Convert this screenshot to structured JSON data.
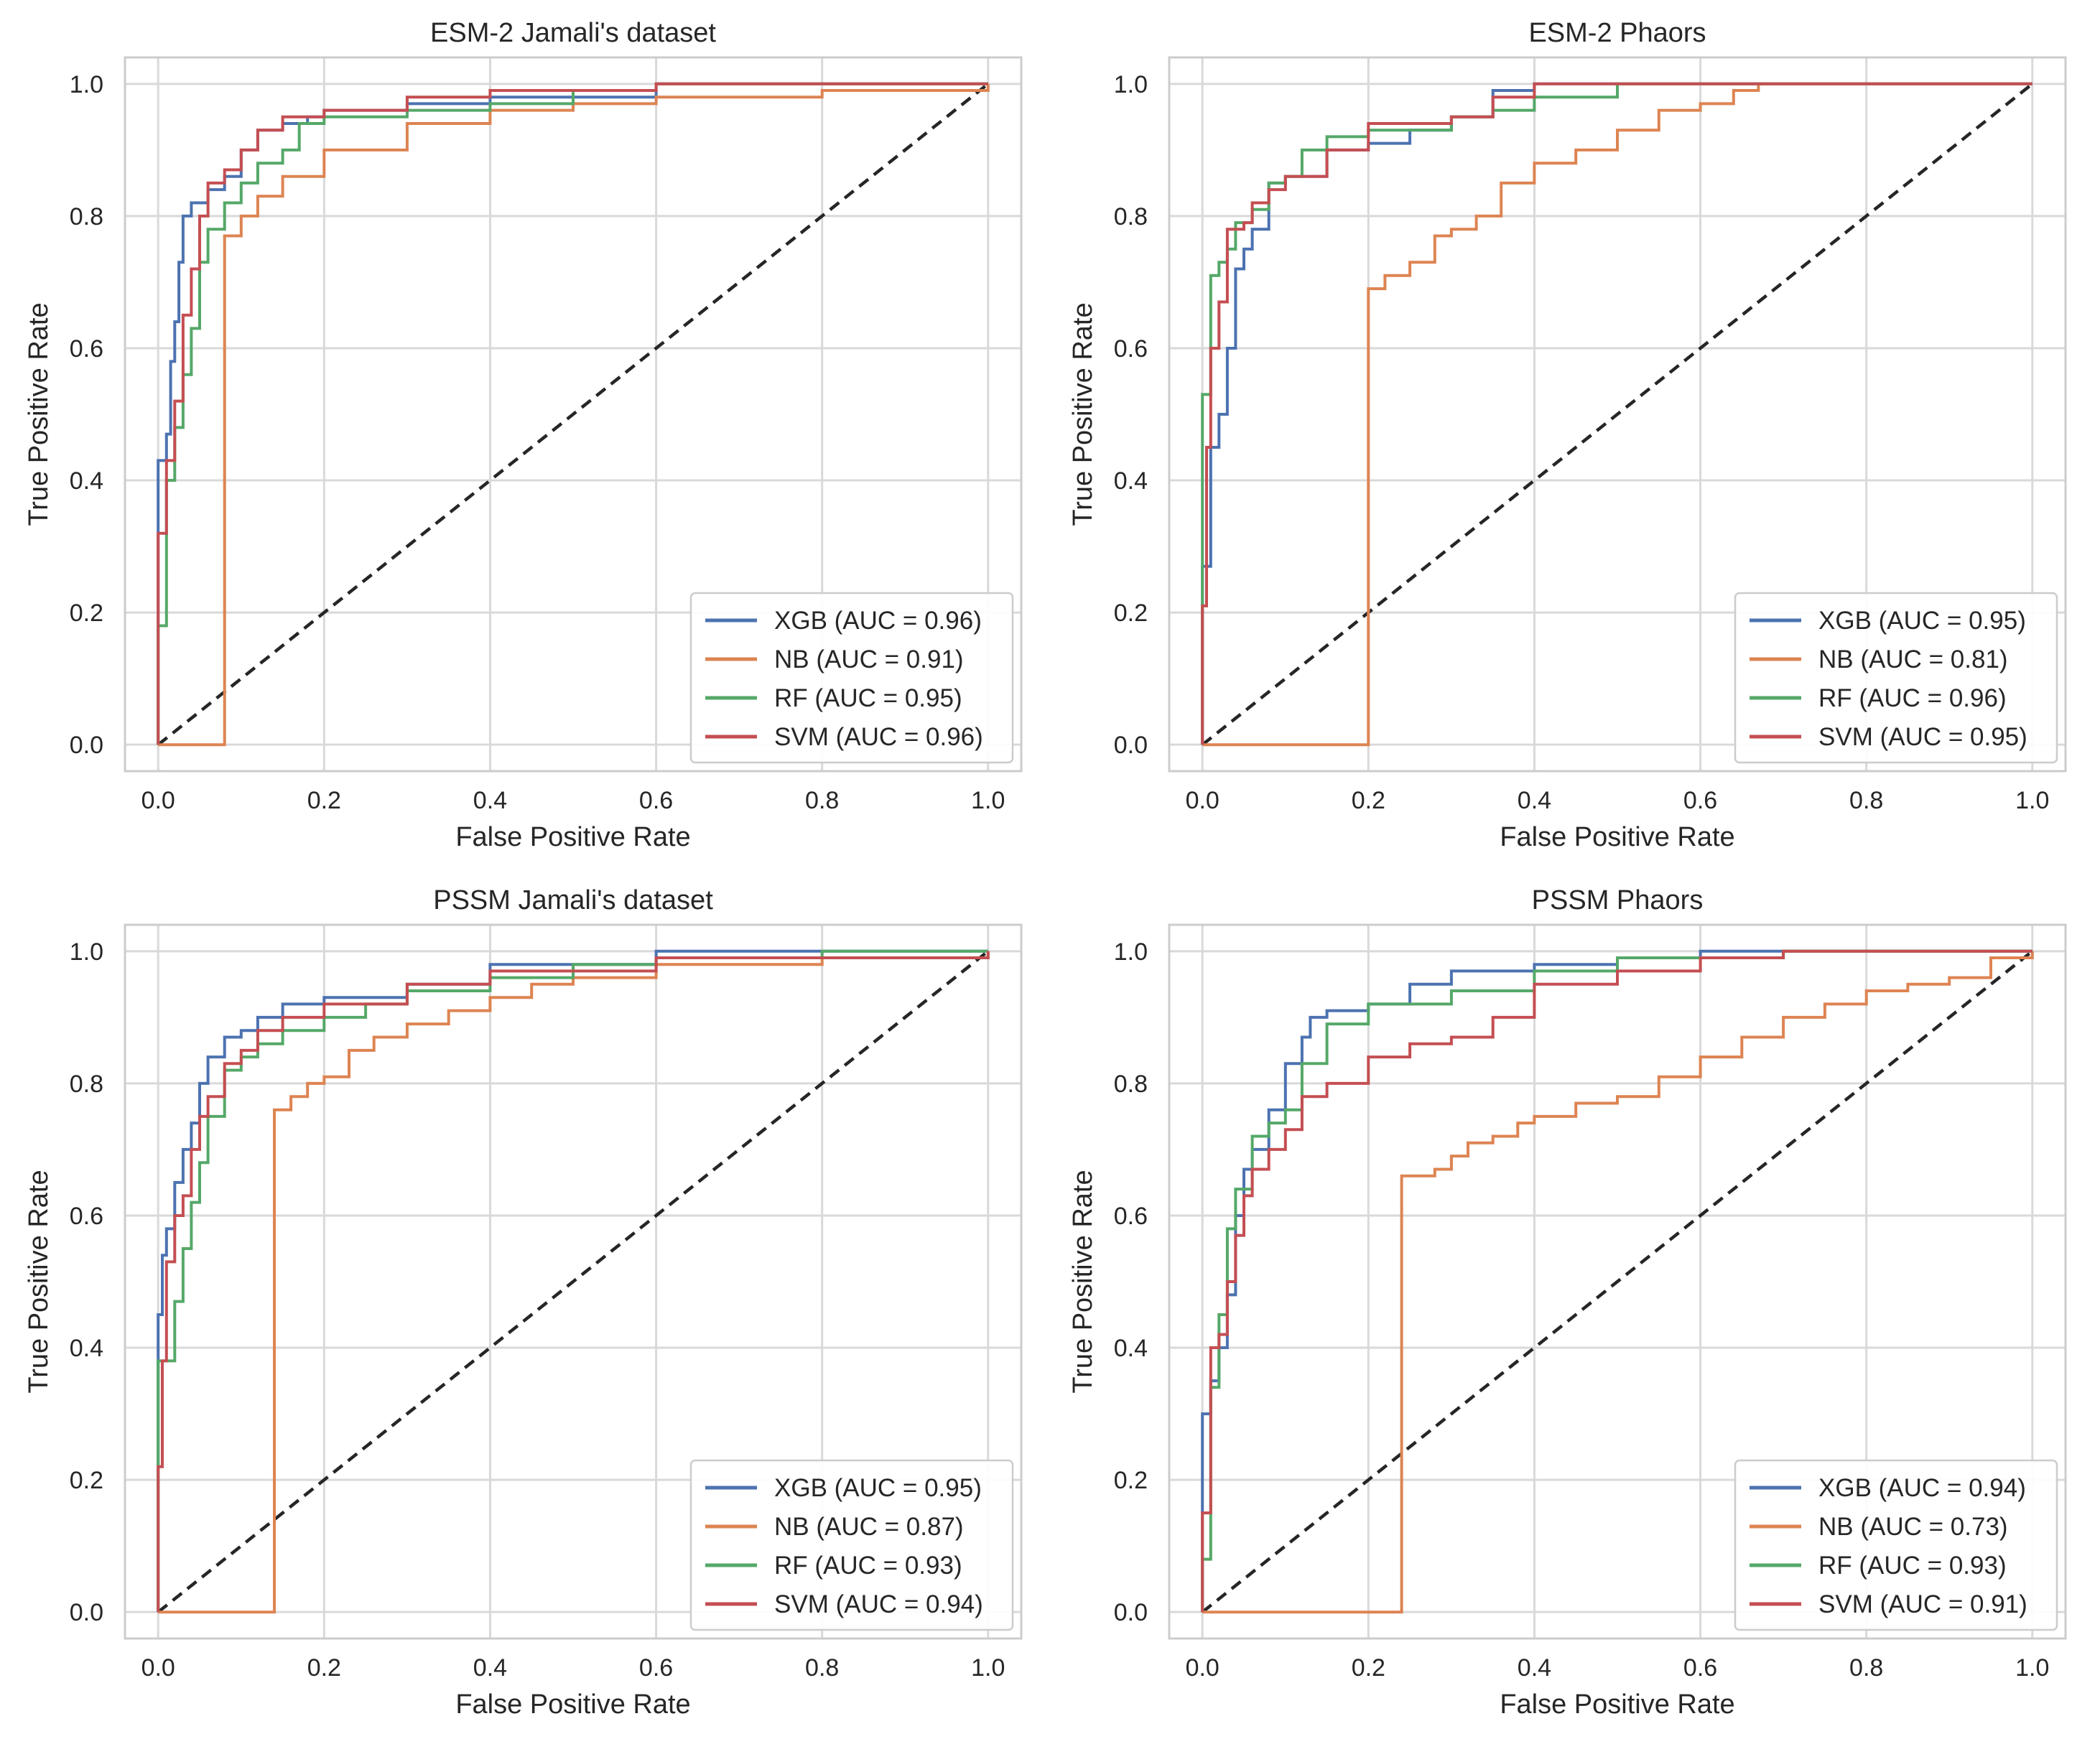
{
  "figure": {
    "background": "#ffffff",
    "grid_color": "#d9d9d9",
    "frame_color": "#cccccc",
    "diagonal_color": "#262626"
  },
  "series_colors": {
    "XGB": "#4c72b0",
    "NB": "#dd8452",
    "RF": "#55a868",
    "SVM": "#c44e52"
  },
  "chart_data": [
    {
      "type": "line",
      "title": "ESM-2 Jamali's dataset",
      "xlabel": "False Positive Rate",
      "ylabel": "True Positive Rate",
      "xlim": [
        0.0,
        1.0
      ],
      "ylim": [
        0.0,
        1.0
      ],
      "xticks": [
        "0.0",
        "0.2",
        "0.4",
        "0.6",
        "0.8",
        "1.0"
      ],
      "yticks": [
        "0.0",
        "0.2",
        "0.4",
        "0.6",
        "0.8",
        "1.0"
      ],
      "grid": true,
      "legend_position": "lower-right",
      "legend": [
        "XGB (AUC = 0.96)",
        "NB (AUC = 0.91)",
        "RF (AUC = 0.95)",
        "SVM (AUC = 0.96)"
      ],
      "series": [
        {
          "name": "XGB",
          "auc": 0.96,
          "x": [
            0,
            0,
            0.005,
            0.01,
            0.015,
            0.02,
            0.025,
            0.03,
            0.04,
            0.06,
            0.08,
            0.1,
            0.12,
            0.15,
            0.18,
            0.2,
            0.3,
            0.4,
            0.49,
            0.6,
            0.8,
            1.0
          ],
          "y": [
            0,
            0.43,
            0.43,
            0.47,
            0.58,
            0.64,
            0.73,
            0.8,
            0.82,
            0.84,
            0.86,
            0.9,
            0.93,
            0.94,
            0.95,
            0.96,
            0.97,
            0.98,
            0.98,
            1.0,
            1.0,
            1.0
          ]
        },
        {
          "name": "NB",
          "auc": 0.91,
          "x": [
            0,
            0.08,
            0.1,
            0.12,
            0.15,
            0.2,
            0.3,
            0.4,
            0.5,
            0.6,
            0.8,
            1.0
          ],
          "y": [
            0,
            0.77,
            0.8,
            0.83,
            0.86,
            0.9,
            0.94,
            0.96,
            0.97,
            0.98,
            0.99,
            1.0
          ]
        },
        {
          "name": "RF",
          "auc": 0.95,
          "x": [
            0,
            0,
            0.01,
            0.02,
            0.03,
            0.04,
            0.05,
            0.06,
            0.08,
            0.1,
            0.12,
            0.15,
            0.17,
            0.2,
            0.3,
            0.4,
            0.5,
            0.6,
            0.8,
            1.0
          ],
          "y": [
            0,
            0.18,
            0.4,
            0.48,
            0.56,
            0.63,
            0.73,
            0.78,
            0.82,
            0.85,
            0.88,
            0.9,
            0.94,
            0.95,
            0.96,
            0.97,
            0.99,
            1.0,
            1.0,
            1.0
          ]
        },
        {
          "name": "SVM",
          "auc": 0.96,
          "x": [
            0,
            0,
            0.01,
            0.02,
            0.03,
            0.04,
            0.05,
            0.06,
            0.08,
            0.1,
            0.12,
            0.15,
            0.2,
            0.3,
            0.4,
            0.6,
            0.8,
            1.0
          ],
          "y": [
            0,
            0.32,
            0.43,
            0.52,
            0.65,
            0.72,
            0.8,
            0.85,
            0.87,
            0.9,
            0.93,
            0.95,
            0.96,
            0.98,
            0.99,
            1.0,
            1.0,
            1.0
          ]
        }
      ]
    },
    {
      "type": "line",
      "title": "ESM-2 Phaors",
      "xlabel": "False Positive Rate",
      "ylabel": "True Positive Rate",
      "xlim": [
        0.0,
        1.0
      ],
      "ylim": [
        0.0,
        1.0
      ],
      "xticks": [
        "0.0",
        "0.2",
        "0.4",
        "0.6",
        "0.8",
        "1.0"
      ],
      "yticks": [
        "0.0",
        "0.2",
        "0.4",
        "0.6",
        "0.8",
        "1.0"
      ],
      "grid": true,
      "legend_position": "lower-right",
      "legend": [
        "XGB (AUC = 0.95)",
        "NB (AUC = 0.81)",
        "RF (AUC = 0.96)",
        "SVM (AUC = 0.95)"
      ],
      "series": [
        {
          "name": "XGB",
          "auc": 0.95,
          "x": [
            0,
            0,
            0.01,
            0.02,
            0.03,
            0.04,
            0.05,
            0.06,
            0.08,
            0.1,
            0.15,
            0.2,
            0.25,
            0.3,
            0.35,
            0.4,
            0.6,
            1.0
          ],
          "y": [
            0,
            0.27,
            0.45,
            0.5,
            0.6,
            0.72,
            0.75,
            0.78,
            0.85,
            0.86,
            0.9,
            0.91,
            0.93,
            0.95,
            0.99,
            1.0,
            1.0,
            1.0
          ]
        },
        {
          "name": "NB",
          "auc": 0.81,
          "x": [
            0,
            0.2,
            0.22,
            0.25,
            0.28,
            0.3,
            0.33,
            0.36,
            0.4,
            0.45,
            0.5,
            0.55,
            0.6,
            0.64,
            0.67,
            0.7,
            1.0
          ],
          "y": [
            0,
            0.69,
            0.71,
            0.73,
            0.77,
            0.78,
            0.8,
            0.85,
            0.88,
            0.9,
            0.93,
            0.96,
            0.97,
            0.99,
            1.0,
            1.0,
            1.0
          ]
        },
        {
          "name": "RF",
          "auc": 0.96,
          "x": [
            0,
            0,
            0.01,
            0.02,
            0.03,
            0.04,
            0.06,
            0.08,
            0.1,
            0.12,
            0.15,
            0.2,
            0.3,
            0.35,
            0.4,
            0.5,
            0.6,
            1.0
          ],
          "y": [
            0,
            0.53,
            0.71,
            0.73,
            0.75,
            0.79,
            0.81,
            0.85,
            0.86,
            0.9,
            0.92,
            0.93,
            0.95,
            0.96,
            0.98,
            1.0,
            1.0,
            1.0
          ]
        },
        {
          "name": "SVM",
          "auc": 0.95,
          "x": [
            0,
            0,
            0.005,
            0.01,
            0.02,
            0.03,
            0.05,
            0.06,
            0.08,
            0.1,
            0.15,
            0.2,
            0.3,
            0.35,
            0.4,
            0.6,
            1.0
          ],
          "y": [
            0,
            0.21,
            0.45,
            0.6,
            0.67,
            0.78,
            0.79,
            0.82,
            0.84,
            0.86,
            0.9,
            0.94,
            0.95,
            0.98,
            1.0,
            1.0,
            1.0
          ]
        }
      ]
    },
    {
      "type": "line",
      "title": "PSSM Jamali's dataset",
      "xlabel": "False Positive Rate",
      "ylabel": "True Positive Rate",
      "xlim": [
        0.0,
        1.0
      ],
      "ylim": [
        0.0,
        1.0
      ],
      "xticks": [
        "0.0",
        "0.2",
        "0.4",
        "0.6",
        "0.8",
        "1.0"
      ],
      "yticks": [
        "0.0",
        "0.2",
        "0.4",
        "0.6",
        "0.8",
        "1.0"
      ],
      "grid": true,
      "legend_position": "lower-right",
      "legend": [
        "XGB (AUC = 0.95)",
        "NB (AUC = 0.87)",
        "RF (AUC = 0.93)",
        "SVM (AUC = 0.94)"
      ],
      "series": [
        {
          "name": "XGB",
          "auc": 0.95,
          "x": [
            0,
            0,
            0.005,
            0.01,
            0.02,
            0.03,
            0.04,
            0.05,
            0.06,
            0.08,
            0.1,
            0.12,
            0.15,
            0.2,
            0.3,
            0.4,
            0.6,
            1.0
          ],
          "y": [
            0,
            0.45,
            0.54,
            0.58,
            0.65,
            0.7,
            0.74,
            0.8,
            0.84,
            0.87,
            0.88,
            0.9,
            0.92,
            0.93,
            0.95,
            0.98,
            1.0,
            1.0
          ]
        },
        {
          "name": "NB",
          "auc": 0.87,
          "x": [
            0,
            0.14,
            0.16,
            0.18,
            0.2,
            0.23,
            0.26,
            0.3,
            0.35,
            0.4,
            0.45,
            0.5,
            0.6,
            0.8,
            1.0
          ],
          "y": [
            0,
            0.76,
            0.78,
            0.8,
            0.81,
            0.85,
            0.87,
            0.89,
            0.91,
            0.93,
            0.95,
            0.96,
            0.98,
            0.99,
            1.0
          ]
        },
        {
          "name": "RF",
          "auc": 0.93,
          "x": [
            0,
            0,
            0.01,
            0.02,
            0.03,
            0.04,
            0.05,
            0.06,
            0.08,
            0.1,
            0.12,
            0.15,
            0.2,
            0.25,
            0.3,
            0.4,
            0.5,
            0.6,
            0.8,
            1.0
          ],
          "y": [
            0,
            0.38,
            0.38,
            0.47,
            0.55,
            0.62,
            0.68,
            0.75,
            0.82,
            0.84,
            0.86,
            0.88,
            0.9,
            0.92,
            0.94,
            0.96,
            0.98,
            0.99,
            1.0,
            1.0
          ]
        },
        {
          "name": "SVM",
          "auc": 0.94,
          "x": [
            0,
            0,
            0.005,
            0.01,
            0.02,
            0.03,
            0.04,
            0.05,
            0.06,
            0.08,
            0.1,
            0.12,
            0.15,
            0.2,
            0.3,
            0.4,
            0.6,
            1.0
          ],
          "y": [
            0,
            0.22,
            0.38,
            0.53,
            0.6,
            0.63,
            0.7,
            0.75,
            0.78,
            0.83,
            0.85,
            0.88,
            0.9,
            0.92,
            0.95,
            0.97,
            0.99,
            1.0
          ]
        }
      ]
    },
    {
      "type": "line",
      "title": "PSSM Phaors",
      "xlabel": "False Positive Rate",
      "ylabel": "True Positive Rate",
      "xlim": [
        0.0,
        1.0
      ],
      "ylim": [
        0.0,
        1.0
      ],
      "xticks": [
        "0.0",
        "0.2",
        "0.4",
        "0.6",
        "0.8",
        "1.0"
      ],
      "yticks": [
        "0.0",
        "0.2",
        "0.4",
        "0.6",
        "0.8",
        "1.0"
      ],
      "grid": true,
      "legend_position": "lower-right",
      "legend": [
        "XGB (AUC = 0.94)",
        "NB (AUC = 0.73)",
        "RF (AUC = 0.93)",
        "SVM (AUC = 0.91)"
      ],
      "series": [
        {
          "name": "XGB",
          "auc": 0.94,
          "x": [
            0,
            0,
            0.01,
            0.02,
            0.03,
            0.04,
            0.05,
            0.06,
            0.08,
            0.1,
            0.12,
            0.13,
            0.15,
            0.2,
            0.25,
            0.3,
            0.4,
            0.5,
            0.6,
            1.0
          ],
          "y": [
            0,
            0.3,
            0.35,
            0.4,
            0.48,
            0.6,
            0.67,
            0.7,
            0.76,
            0.83,
            0.87,
            0.9,
            0.91,
            0.92,
            0.95,
            0.97,
            0.98,
            0.99,
            1.0,
            1.0
          ]
        },
        {
          "name": "NB",
          "auc": 0.73,
          "x": [
            0,
            0.24,
            0.28,
            0.3,
            0.32,
            0.35,
            0.38,
            0.4,
            0.45,
            0.5,
            0.55,
            0.6,
            0.65,
            0.7,
            0.75,
            0.8,
            0.85,
            0.9,
            0.95,
            1.0
          ],
          "y": [
            0,
            0.66,
            0.67,
            0.69,
            0.71,
            0.72,
            0.74,
            0.75,
            0.77,
            0.78,
            0.81,
            0.84,
            0.87,
            0.9,
            0.92,
            0.94,
            0.95,
            0.96,
            0.99,
            1.0
          ]
        },
        {
          "name": "RF",
          "auc": 0.93,
          "x": [
            0,
            0,
            0.01,
            0.02,
            0.03,
            0.04,
            0.06,
            0.08,
            0.1,
            0.12,
            0.15,
            0.2,
            0.3,
            0.4,
            0.5,
            0.6,
            0.7,
            0.8,
            1.0
          ],
          "y": [
            0,
            0.08,
            0.34,
            0.45,
            0.58,
            0.64,
            0.72,
            0.74,
            0.76,
            0.83,
            0.89,
            0.92,
            0.94,
            0.97,
            0.99,
            0.99,
            1.0,
            1.0,
            1.0
          ]
        },
        {
          "name": "SVM",
          "auc": 0.91,
          "x": [
            0,
            0,
            0.01,
            0.02,
            0.03,
            0.04,
            0.05,
            0.06,
            0.08,
            0.1,
            0.12,
            0.15,
            0.2,
            0.25,
            0.3,
            0.35,
            0.4,
            0.5,
            0.6,
            0.7,
            0.8,
            1.0
          ],
          "y": [
            0,
            0.15,
            0.4,
            0.42,
            0.5,
            0.57,
            0.63,
            0.67,
            0.7,
            0.73,
            0.78,
            0.8,
            0.84,
            0.86,
            0.87,
            0.9,
            0.95,
            0.97,
            0.99,
            1.0,
            1.0,
            1.0
          ]
        }
      ]
    }
  ]
}
